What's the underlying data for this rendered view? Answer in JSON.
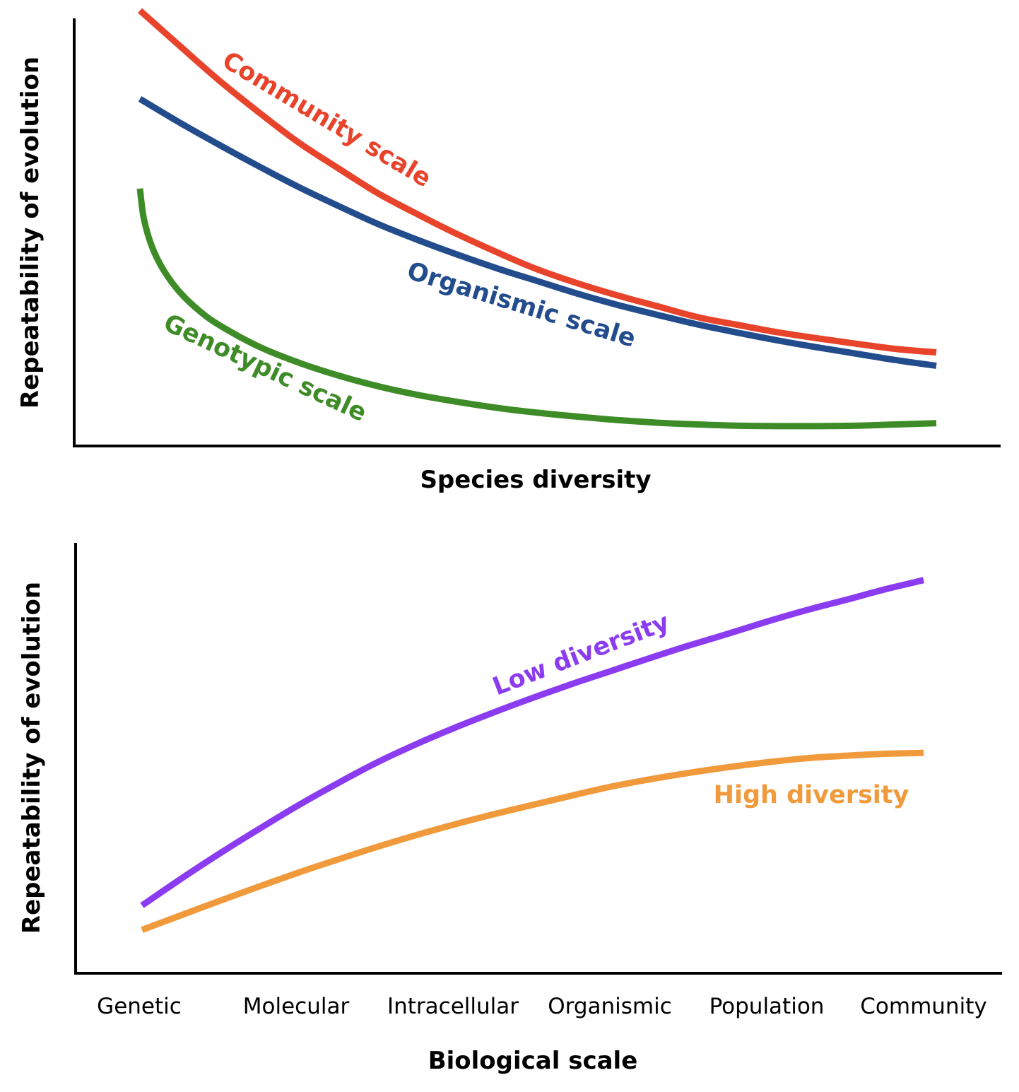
{
  "chart_data": [
    {
      "type": "line",
      "title": "",
      "xlabel": "Species diversity",
      "ylabel": "Repeatability of evolution",
      "xlim": [
        0,
        10
      ],
      "ylim": [
        0,
        10
      ],
      "grid": false,
      "x_ticks_shown": false,
      "y_ticks_shown": false,
      "series": [
        {
          "name": "Community scale",
          "color": "#e8432b",
          "x": [
            0,
            0.5,
            1,
            1.5,
            2,
            2.5,
            3,
            3.5,
            4,
            4.5,
            5,
            5.5,
            6,
            6.5,
            7,
            7.5,
            8,
            8.5,
            9,
            9.5,
            10
          ],
          "y": [
            10.1,
            9.28,
            8.47,
            7.73,
            7.03,
            6.43,
            5.85,
            5.36,
            4.9,
            4.48,
            4.09,
            3.77,
            3.49,
            3.24,
            2.99,
            2.81,
            2.64,
            2.5,
            2.37,
            2.25,
            2.17
          ]
        },
        {
          "name": "Organismic scale",
          "color": "#234c8c",
          "x": [
            0,
            0.5,
            1,
            1.5,
            2,
            2.5,
            3,
            3.5,
            4,
            4.5,
            5,
            5.5,
            6,
            6.5,
            7,
            7.5,
            8,
            8.5,
            9,
            9.5,
            10
          ],
          "y": [
            8.05,
            7.5,
            6.98,
            6.48,
            6.0,
            5.56,
            5.14,
            4.77,
            4.43,
            4.11,
            3.82,
            3.53,
            3.27,
            3.04,
            2.82,
            2.63,
            2.45,
            2.29,
            2.14,
            1.99,
            1.86
          ]
        },
        {
          "name": "Genotypic scale",
          "color": "#3e8c27",
          "x": [
            0,
            0.05,
            0.15,
            0.3,
            0.5,
            0.75,
            1,
            1.5,
            2,
            2.5,
            3,
            3.5,
            4,
            4.5,
            5,
            5.5,
            6,
            6.5,
            7,
            7.5,
            8,
            8.5,
            9,
            9.5,
            10
          ],
          "y": [
            5.97,
            5.27,
            4.63,
            4.07,
            3.57,
            3.13,
            2.8,
            2.3,
            1.93,
            1.63,
            1.38,
            1.18,
            1.02,
            0.88,
            0.77,
            0.68,
            0.6,
            0.54,
            0.5,
            0.47,
            0.46,
            0.46,
            0.47,
            0.5,
            0.53
          ]
        }
      ],
      "labels": [
        "Community scale",
        "Organismic scale",
        "Genotypic scale"
      ]
    },
    {
      "type": "line",
      "title": "",
      "xlabel": "Biological scale",
      "ylabel": "Repeatability of evolution",
      "categories": [
        "Genetic",
        "Molecular",
        "Intracellular",
        "Organismic",
        "Population",
        "Community"
      ],
      "xlim": [
        0,
        5
      ],
      "ylim": [
        0,
        10
      ],
      "grid": false,
      "series": [
        {
          "name": "Low diversity",
          "color": "#8c3cf0",
          "x": [
            0,
            0.25,
            0.5,
            0.75,
            1,
            1.25,
            1.5,
            1.75,
            2,
            2.25,
            2.5,
            2.75,
            3,
            3.25,
            3.5,
            3.75,
            4,
            4.25,
            4.5,
            4.75,
            5
          ],
          "y": [
            1.67,
            2.33,
            2.96,
            3.56,
            4.14,
            4.68,
            5.19,
            5.64,
            6.05,
            6.43,
            6.79,
            7.13,
            7.45,
            7.77,
            8.08,
            8.37,
            8.67,
            8.95,
            9.2,
            9.46,
            9.69
          ]
        },
        {
          "name": "High diversity",
          "color": "#f09a3c",
          "x": [
            0,
            0.25,
            0.5,
            0.75,
            1,
            1.25,
            1.5,
            1.75,
            2,
            2.25,
            2.5,
            2.75,
            3,
            3.25,
            3.5,
            3.75,
            4,
            4.25,
            4.5,
            4.75,
            5
          ],
          "y": [
            1.07,
            1.43,
            1.79,
            2.14,
            2.48,
            2.8,
            3.11,
            3.4,
            3.67,
            3.92,
            4.15,
            4.38,
            4.6,
            4.78,
            4.94,
            5.08,
            5.2,
            5.3,
            5.36,
            5.41,
            5.43
          ]
        }
      ],
      "labels": [
        "Low diversity",
        "High diversity"
      ]
    }
  ]
}
